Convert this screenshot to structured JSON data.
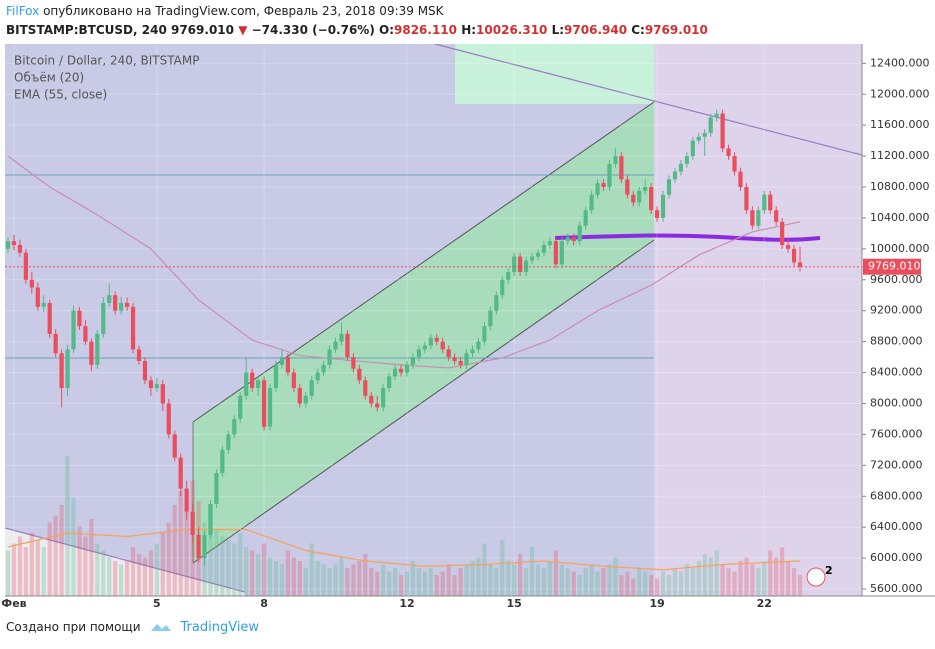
{
  "header": {
    "author": "FilFox",
    "published": "опубликовано на TradingView.com, Февраль 23, 2018 09:39 MSK",
    "symbol": "BITSTAMP:BTCUSD, 240",
    "last": "9769.010",
    "arrow": "▼",
    "change": "−74.330 (−0.76%)",
    "o_label": "O:",
    "o": "9826.110",
    "h_label": "H:",
    "h": "10026.310",
    "l_label": "L:",
    "l": "9706.940",
    "c_label": "C:",
    "c": "9769.010"
  },
  "footer": {
    "made_with": "Создано при помощи",
    "brand": "TradingView"
  },
  "chart_data": {
    "type": "candlestick",
    "title": "Bitcoin / Dollar, 240, BITSTAMP",
    "volume_label": "Объём (20)",
    "ema_label": "EMA (55, close)",
    "badge": "2",
    "up_color": "#53b987",
    "down_color": "#eb4d5c",
    "ema_color": "#c98fb0",
    "volume_ma_color": "#f5a35c",
    "ylim": [
      5510,
      12650
    ],
    "yticks": [
      {
        "value": 5600,
        "label": "5600.000"
      },
      {
        "value": 6000,
        "label": "6000.000"
      },
      {
        "value": 6400,
        "label": "6400.000"
      },
      {
        "value": 6800,
        "label": "6800.000"
      },
      {
        "value": 7200,
        "label": "7200.000"
      },
      {
        "value": 7600,
        "label": "7600.000"
      },
      {
        "value": 8000,
        "label": "8000.000"
      },
      {
        "value": 8400,
        "label": "8400.000"
      },
      {
        "value": 8800,
        "label": "8800.000"
      },
      {
        "value": 9200,
        "label": "9200.000"
      },
      {
        "value": 9600,
        "label": "9600.000"
      },
      {
        "value": 10000,
        "label": "10000.000"
      },
      {
        "value": 10400,
        "label": "10400.000"
      },
      {
        "value": 10800,
        "label": "10800.000"
      },
      {
        "value": 11200,
        "label": "11200.000"
      },
      {
        "value": 11600,
        "label": "11600.000"
      },
      {
        "value": 12000,
        "label": "12000.000"
      },
      {
        "value": 12400,
        "label": "12400.000"
      }
    ],
    "xticks": [
      {
        "value": 1,
        "label": "Фев"
      },
      {
        "value": 25,
        "label": "5"
      },
      {
        "value": 43,
        "label": "8"
      },
      {
        "value": 67,
        "label": "12"
      },
      {
        "value": 85,
        "label": "15"
      },
      {
        "value": 109,
        "label": "19"
      },
      {
        "value": 127,
        "label": "22"
      }
    ],
    "candles": [
      [
        10000,
        10150,
        9950,
        10100
      ],
      [
        10100,
        10180,
        9980,
        10050
      ],
      [
        10050,
        10120,
        9900,
        9950
      ],
      [
        9950,
        10000,
        9550,
        9600
      ],
      [
        9600,
        9700,
        9420,
        9500
      ],
      [
        9500,
        9560,
        9200,
        9250
      ],
      [
        9250,
        9400,
        9180,
        9300
      ],
      [
        9300,
        9340,
        8850,
        8900
      ],
      [
        8900,
        8960,
        8600,
        8650
      ],
      [
        8650,
        8700,
        7950,
        8200
      ],
      [
        8200,
        8760,
        8100,
        8700
      ],
      [
        8700,
        9260,
        8650,
        9200
      ],
      [
        9200,
        9250,
        8950,
        9000
      ],
      [
        9000,
        9080,
        8760,
        8800
      ],
      [
        8800,
        8840,
        8420,
        8500
      ],
      [
        8500,
        8950,
        8450,
        8900
      ],
      [
        8900,
        9380,
        8850,
        9300
      ],
      [
        9300,
        9550,
        9250,
        9400
      ],
      [
        9400,
        9450,
        9150,
        9200
      ],
      [
        9200,
        9380,
        9150,
        9300
      ],
      [
        9300,
        9370,
        9200,
        9250
      ],
      [
        9250,
        9300,
        8650,
        8700
      ],
      [
        8700,
        8750,
        8500,
        8550
      ],
      [
        8550,
        8600,
        8250,
        8300
      ],
      [
        8300,
        8350,
        8100,
        8200
      ],
      [
        8200,
        8330,
        8150,
        8250
      ],
      [
        8250,
        8300,
        7900,
        8000
      ],
      [
        8000,
        8060,
        7550,
        7600
      ],
      [
        7600,
        7650,
        7250,
        7300
      ],
      [
        7300,
        7350,
        6800,
        6900
      ],
      [
        6900,
        7000,
        6500,
        6600
      ],
      [
        6600,
        6700,
        6200,
        6300
      ],
      [
        6300,
        6400,
        5950,
        6000
      ],
      [
        6000,
        6350,
        5900,
        6300
      ],
      [
        6300,
        6750,
        6250,
        6700
      ],
      [
        6700,
        7150,
        6650,
        7100
      ],
      [
        7100,
        7450,
        7050,
        7400
      ],
      [
        7400,
        7650,
        7350,
        7600
      ],
      [
        7600,
        7850,
        7550,
        7800
      ],
      [
        7800,
        8150,
        7750,
        8100
      ],
      [
        8100,
        8600,
        8050,
        8400
      ],
      [
        8400,
        8450,
        8150,
        8200
      ],
      [
        8200,
        8350,
        8100,
        8300
      ],
      [
        8300,
        8350,
        7650,
        7700
      ],
      [
        7700,
        8250,
        7650,
        8200
      ],
      [
        8200,
        8550,
        8150,
        8500
      ],
      [
        8500,
        8700,
        8450,
        8600
      ],
      [
        8600,
        8650,
        8350,
        8400
      ],
      [
        8400,
        8450,
        8150,
        8200
      ],
      [
        8200,
        8250,
        7950,
        8000
      ],
      [
        8000,
        8150,
        7950,
        8100
      ],
      [
        8100,
        8350,
        8050,
        8300
      ],
      [
        8300,
        8450,
        8250,
        8400
      ],
      [
        8400,
        8550,
        8350,
        8500
      ],
      [
        8500,
        8750,
        8450,
        8700
      ],
      [
        8700,
        8850,
        8650,
        8800
      ],
      [
        8800,
        9050,
        8750,
        8900
      ],
      [
        8900,
        8950,
        8550,
        8600
      ],
      [
        8600,
        8650,
        8400,
        8450
      ],
      [
        8450,
        8500,
        8250,
        8300
      ],
      [
        8300,
        8350,
        8050,
        8100
      ],
      [
        8100,
        8150,
        7950,
        8000
      ],
      [
        8000,
        8100,
        7900,
        7950
      ],
      [
        7950,
        8250,
        7900,
        8200
      ],
      [
        8200,
        8400,
        8150,
        8350
      ],
      [
        8350,
        8500,
        8300,
        8450
      ],
      [
        8450,
        8500,
        8350,
        8400
      ],
      [
        8400,
        8550,
        8350,
        8500
      ],
      [
        8500,
        8650,
        8450,
        8600
      ],
      [
        8600,
        8750,
        8550,
        8700
      ],
      [
        8700,
        8800,
        8650,
        8750
      ],
      [
        8750,
        8900,
        8700,
        8850
      ],
      [
        8850,
        8900,
        8750,
        8800
      ],
      [
        8800,
        8850,
        8650,
        8700
      ],
      [
        8700,
        8750,
        8550,
        8600
      ],
      [
        8600,
        8650,
        8500,
        8550
      ],
      [
        8550,
        8600,
        8450,
        8500
      ],
      [
        8500,
        8700,
        8450,
        8650
      ],
      [
        8650,
        8750,
        8600,
        8700
      ],
      [
        8700,
        8850,
        8650,
        8800
      ],
      [
        8800,
        9050,
        8750,
        9000
      ],
      [
        9000,
        9250,
        8950,
        9200
      ],
      [
        9200,
        9450,
        9150,
        9400
      ],
      [
        9400,
        9650,
        9350,
        9600
      ],
      [
        9600,
        9750,
        9550,
        9700
      ],
      [
        9700,
        9950,
        9650,
        9900
      ],
      [
        9900,
        9950,
        9650,
        9700
      ],
      [
        9700,
        9900,
        9650,
        9850
      ],
      [
        9850,
        9950,
        9800,
        9900
      ],
      [
        9900,
        10000,
        9850,
        9950
      ],
      [
        9950,
        10100,
        9900,
        10050
      ],
      [
        10050,
        10150,
        10000,
        10100
      ],
      [
        10100,
        10150,
        9750,
        9800
      ],
      [
        9800,
        10150,
        9750,
        10100
      ],
      [
        10100,
        10200,
        10050,
        10150
      ],
      [
        10150,
        10200,
        10050,
        10100
      ],
      [
        10100,
        10350,
        10050,
        10300
      ],
      [
        10300,
        10550,
        10250,
        10500
      ],
      [
        10500,
        10750,
        10450,
        10700
      ],
      [
        10700,
        10900,
        10650,
        10850
      ],
      [
        10850,
        10900,
        10750,
        10800
      ],
      [
        10800,
        11150,
        10750,
        11100
      ],
      [
        11100,
        11300,
        11050,
        11200
      ],
      [
        11200,
        11250,
        10850,
        10900
      ],
      [
        10900,
        10950,
        10650,
        10700
      ],
      [
        10700,
        10750,
        10550,
        10600
      ],
      [
        10600,
        10800,
        10550,
        10750
      ],
      [
        10750,
        10900,
        10700,
        10800
      ],
      [
        10800,
        10850,
        10450,
        10500
      ],
      [
        10500,
        10550,
        10350,
        10400
      ],
      [
        10400,
        10750,
        10350,
        10700
      ],
      [
        10700,
        10950,
        10650,
        10900
      ],
      [
        10900,
        11050,
        10850,
        11000
      ],
      [
        11000,
        11150,
        10950,
        11100
      ],
      [
        11100,
        11250,
        11050,
        11200
      ],
      [
        11200,
        11450,
        11150,
        11400
      ],
      [
        11400,
        11500,
        11350,
        11450
      ],
      [
        11450,
        11550,
        11200,
        11500
      ],
      [
        11500,
        11750,
        11450,
        11700
      ],
      [
        11700,
        11800,
        11650,
        11750
      ],
      [
        11750,
        11800,
        11250,
        11300
      ],
      [
        11300,
        11350,
        11150,
        11200
      ],
      [
        11200,
        11250,
        10950,
        11000
      ],
      [
        11000,
        11050,
        10750,
        10800
      ],
      [
        10800,
        10850,
        10450,
        10500
      ],
      [
        10500,
        10550,
        10250,
        10300
      ],
      [
        10300,
        10550,
        10250,
        10500
      ],
      [
        10500,
        10750,
        10450,
        10700
      ],
      [
        10700,
        10750,
        10450,
        10500
      ],
      [
        10500,
        10550,
        10300,
        10350
      ],
      [
        10350,
        10400,
        10000,
        10050
      ],
      [
        10050,
        10150,
        9950,
        10000
      ],
      [
        10000,
        10050,
        9780,
        9826.11
      ],
      [
        9826.11,
        10026.31,
        9706.94,
        9769.01
      ]
    ],
    "volume": [
      1300,
      1500,
      1700,
      1400,
      1800,
      1600,
      1400,
      2100,
      2300,
      2600,
      4000,
      2800,
      2000,
      1700,
      2200,
      1500,
      1300,
      1100,
      1000,
      900,
      1000,
      1400,
      1200,
      1100,
      1300,
      1500,
      1800,
      2100,
      2600,
      3000,
      2400,
      3300,
      2700,
      2100,
      2500,
      1900,
      1700,
      1600,
      1500,
      1800,
      1400,
      1300,
      1200,
      1500,
      1100,
      1000,
      900,
      1300,
      1100,
      1000,
      800,
      1500,
      1000,
      900,
      800,
      900,
      1100,
      800,
      900,
      1000,
      1200,
      800,
      700,
      900,
      700,
      800,
      600,
      700,
      1000,
      800,
      700,
      800,
      600,
      700,
      900,
      600,
      800,
      900,
      1000,
      1100,
      1500,
      900,
      800,
      1600,
      1000,
      900,
      1200,
      800,
      1400,
      900,
      800,
      1000,
      1300,
      900,
      800,
      700,
      600,
      800,
      900,
      700,
      800,
      900,
      1100,
      600,
      700,
      500,
      800,
      700,
      600,
      500,
      700,
      600,
      800,
      700,
      900,
      800,
      1000,
      1200,
      1100,
      1300,
      900,
      800,
      700,
      1000,
      1100,
      900,
      800,
      1000,
      1300,
      1100,
      1400,
      1000,
      800,
      600
    ],
    "ema": {
      "x": [
        0,
        7,
        15,
        24,
        32,
        41,
        49,
        57,
        66,
        74,
        83,
        91,
        99,
        108,
        116,
        125,
        133
      ],
      "values": [
        11200,
        10800,
        10440,
        10000,
        9340,
        8820,
        8620,
        8560,
        8500,
        8460,
        8590,
        8820,
        9200,
        9530,
        9920,
        10220,
        10350
      ]
    },
    "volume_ma": {
      "x": [
        0,
        10,
        20,
        30,
        40,
        50,
        60,
        70,
        80,
        90,
        100,
        110,
        120,
        133
      ],
      "values": [
        1400,
        1800,
        1700,
        1900,
        1900,
        1300,
        1000,
        850,
        900,
        1000,
        850,
        750,
        900,
        1000
      ]
    }
  }
}
